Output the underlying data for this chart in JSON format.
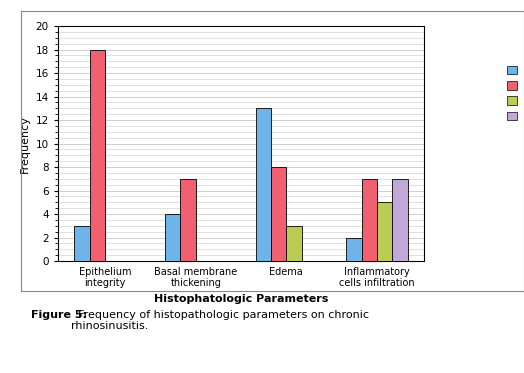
{
  "categories": [
    "Epithelium\nintegrity",
    "Basal membrane\nthickening",
    "Edema",
    "Inflammatory\ncells infiltration"
  ],
  "scores": {
    "score 0": [
      3,
      4,
      13,
      2
    ],
    "score 1": [
      18,
      7,
      8,
      7
    ],
    "score 2": [
      0,
      0,
      3,
      5
    ],
    "score 3": [
      0,
      0,
      0,
      7
    ]
  },
  "colors": {
    "score 0": "#6EB4E8",
    "score 1": "#F06070",
    "score 2": "#BBCC55",
    "score 3": "#C0A8D8"
  },
  "ylabel": "Frequency",
  "xlabel": "Histophatologic Parameters",
  "ylim": [
    0,
    20
  ],
  "yticks": [
    0,
    2,
    4,
    6,
    8,
    10,
    12,
    14,
    16,
    18,
    20
  ],
  "background_color": "#ffffff",
  "plot_bg_color": "#ffffff",
  "grid_color": "#c8c8c8",
  "bar_width": 0.17,
  "caption_bold": "Figure 5:",
  "caption_normal": "  Frequency of histopathologic parameters on chronic\nrhinosinusitis."
}
